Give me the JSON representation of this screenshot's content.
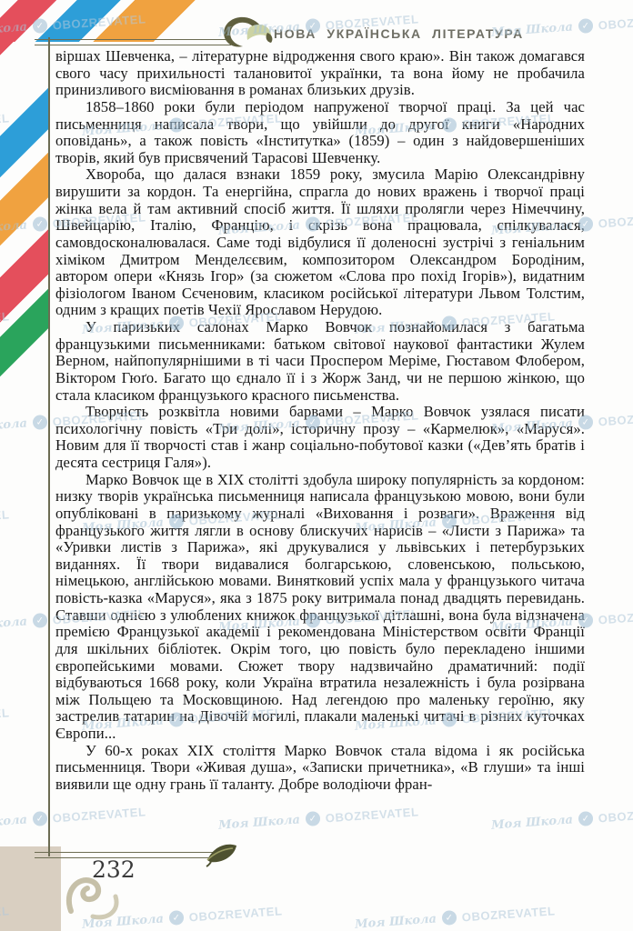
{
  "page": {
    "header": {
      "title": "НОВА УКРАЇНСЬКА ЛІТЕРАТУРА"
    },
    "paragraphs": [
      {
        "indent": false,
        "text": "віршах Шевченка, – літературне відродження свого краю». Він також домагався свого часу прихильності талановитої українки, та вона йому не пробачила принизливого висміювання в романах близьких друзів."
      },
      {
        "indent": true,
        "text": "1858–1860 роки були періодом напруженої творчої праці. За цей час письменниця написала твори, що увійшли до другої книги «Народних оповідань», а також повість «Інститутка» (1859) – один з найдовершеніших творів, який був присвячений Тарасові Шевченку."
      },
      {
        "indent": true,
        "text": "Хвороба, що далася взнаки 1859 року, змусила Марію Олександрівну вирушити за кордон. Та енергійна, спрагла до нових вражень і творчої праці жінка вела й там активний спосіб життя. Її шляхи пролягли через Німеччину, Швейцарію, Італію, Францію, і скрізь вона працювала, спілкувалася, самовдосконалювалася. Саме тоді відбулися її доленосні зустрічі з геніальним хіміком Дмитром Менделєєвим, композитором Олександром Бородіним, автором опери «Князь Ігор» (за сюжетом «Слова про похід Ігорів»), видатним фізіологом Іваном Сєченовим, класиком російської літератури Львом Толстим, одним з кращих поетів Чехії Ярославом Нерудою."
      },
      {
        "indent": true,
        "text": "У паризьких салонах Марко Вовчок познайомилася з багатьма французькими письменниками: батьком світової наукової фантастики Жулем Верном, найпопулярнішими в ті часи Проспером Меріме, Гюставом Флобером, Віктором Гюґо. Багато що єднало її і з Жорж Занд, чи не першою жінкою, що стала класиком французького красного письменства."
      },
      {
        "indent": true,
        "text": "Творчість розквітла новими барвами – Марко Вовчок узялася писати психологічну повість «Три долі», історичну прозу – «Кармелюк», «Маруся». Новим для її творчості став і жанр соціально-побутової казки («Дев’ять братів і десята сестриця Галя»)."
      },
      {
        "indent": true,
        "text": "Марко Вовчок ще в XIX столітті здобула широку популярність за кордоном: низку творів українська письменниця написала французькою мовою, вони були опубліковані в паризькому журналі «Виховання і розваги». Враження від французького життя лягли в основу блискучих нарисів – «Листи з Парижа» та «Уривки листів з Парижа», які друкувалися у львівських і петербурзьких виданнях. Її твори видавалися болгарською, словенською, польською, німецькою, англійською мовами. Винятковий успіх мала у французького читача повість-казка «Маруся», яка з 1875 року витримала понад двадцять перевидань. Ставши однією з улюблених книжок французької дітлашні, вона була відзначена премією Французької академії і рекомендована Міністерством освіти Франції для шкільних бібліотек. Окрім того, цю повість було перекладено іншими європейськими мовами. Сюжет твору надзвичайно драматичний: події відбуваються 1668 року, коли Україна втратила незалежність і була розірвана між Польщею та Московщиною. Над легендою про маленьку героїню, яку застрелив татарин на Дівочій могилі, плакали маленькі читачі в різних куточках Європи..."
      },
      {
        "indent": true,
        "text": "У 60-х роках XIX століття Марко Вовчок стала відома і як російська письменниця. Твори «Живая душа», «Записки причетника», «В глуши» та інші виявили ще одну грань її таланту. Добре володіючи фран-"
      }
    ],
    "footer": {
      "page_number": "232"
    },
    "watermark": {
      "school_label": "Моя Школа",
      "brand_label": "OBOZREVATEL"
    },
    "colors": {
      "stripe_red": "#e44f5c",
      "stripe_blue": "#2d9ed8",
      "stripe_orange": "#f0a240",
      "stripe_green": "#2aa45c",
      "frame": "#6c6c52",
      "title": "#6f6f65",
      "tan_block": "#d9cfc1",
      "watermark": "#a9c3d6"
    }
  }
}
